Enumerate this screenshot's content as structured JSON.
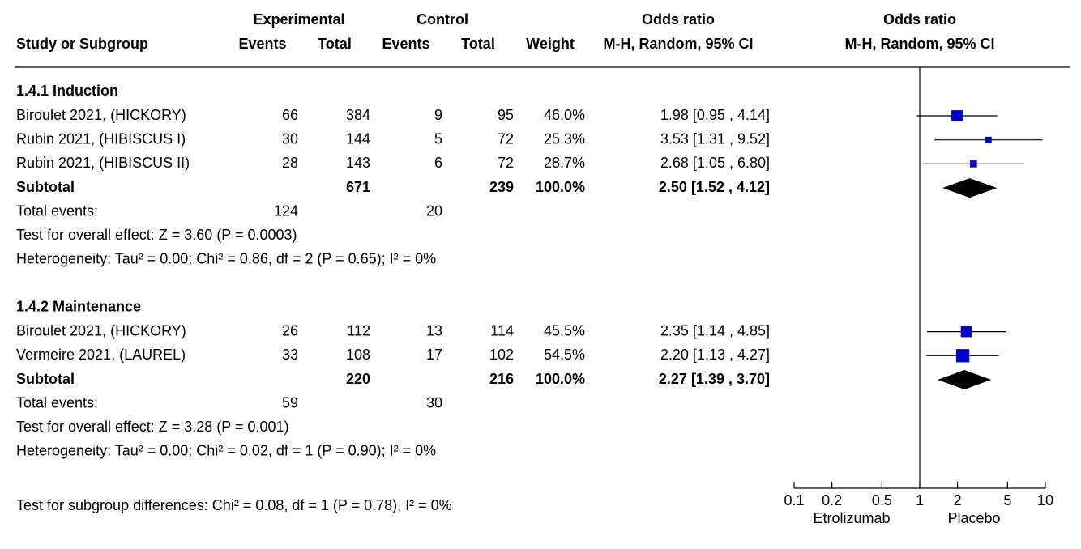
{
  "chart_data": {
    "type": "forest",
    "headers": {
      "experimental": "Experimental",
      "control": "Control",
      "odds_ratio": "Odds ratio",
      "study": "Study or Subgroup",
      "exp_events": "Events",
      "exp_total": "Total",
      "ctrl_events": "Events",
      "ctrl_total": "Total",
      "weight": "Weight",
      "method": "M-H, Random, 95% CI"
    },
    "groups": [
      {
        "title": "1.4.1 Induction",
        "studies": [
          {
            "name": "Biroulet 2021, (HICKORY)",
            "exp_events": 66,
            "exp_total": 384,
            "ctrl_events": 9,
            "ctrl_total": 95,
            "weight": 46.0,
            "weight_label": "46.0%",
            "or": 1.98,
            "lo": 0.95,
            "hi": 4.14,
            "ci_label": "1.98 [0.95 , 4.14]"
          },
          {
            "name": "Rubin 2021, (HIBISCUS I)",
            "exp_events": 30,
            "exp_total": 144,
            "ctrl_events": 5,
            "ctrl_total": 72,
            "weight": 25.3,
            "weight_label": "25.3%",
            "or": 3.53,
            "lo": 1.31,
            "hi": 9.52,
            "ci_label": "3.53 [1.31 , 9.52]"
          },
          {
            "name": "Rubin 2021, (HIBISCUS II)",
            "exp_events": 28,
            "exp_total": 143,
            "ctrl_events": 6,
            "ctrl_total": 72,
            "weight": 28.7,
            "weight_label": "28.7%",
            "or": 2.68,
            "lo": 1.05,
            "hi": 6.8,
            "ci_label": "2.68 [1.05 , 6.80]"
          }
        ],
        "subtotal": {
          "name": "Subtotal",
          "exp_total": 671,
          "ctrl_total": 239,
          "weight": 100.0,
          "weight_label": "100.0%",
          "or": 2.5,
          "lo": 1.52,
          "hi": 4.12,
          "ci_label": "2.50 [1.52 , 4.12]"
        },
        "total_events": {
          "label": "Total events:",
          "exp": 124,
          "ctrl": 20
        },
        "test": "Test for overall effect: Z = 3.60 (P = 0.0003)",
        "heterogeneity": "Heterogeneity: Tau² = 0.00; Chi² = 0.86, df = 2 (P = 0.65); I² = 0%"
      },
      {
        "title": "1.4.2 Maintenance",
        "studies": [
          {
            "name": "Biroulet 2021, (HICKORY)",
            "exp_events": 26,
            "exp_total": 112,
            "ctrl_events": 13,
            "ctrl_total": 114,
            "weight": 45.5,
            "weight_label": "45.5%",
            "or": 2.35,
            "lo": 1.14,
            "hi": 4.85,
            "ci_label": "2.35 [1.14 , 4.85]"
          },
          {
            "name": "Vermeire 2021, (LAUREL)",
            "exp_events": 33,
            "exp_total": 108,
            "ctrl_events": 17,
            "ctrl_total": 102,
            "weight": 54.5,
            "weight_label": "54.5%",
            "or": 2.2,
            "lo": 1.13,
            "hi": 4.27,
            "ci_label": "2.20 [1.13 , 4.27]"
          }
        ],
        "subtotal": {
          "name": "Subtotal",
          "exp_total": 220,
          "ctrl_total": 216,
          "weight": 100.0,
          "weight_label": "100.0%",
          "or": 2.27,
          "lo": 1.39,
          "hi": 3.7,
          "ci_label": "2.27 [1.39 , 3.70]"
        },
        "total_events": {
          "label": "Total events:",
          "exp": 59,
          "ctrl": 30
        },
        "test": "Test for overall effect: Z = 3.28 (P = 0.001)",
        "heterogeneity": "Heterogeneity: Tau² = 0.00; Chi² = 0.02, df = 1 (P = 0.90); I² = 0%"
      }
    ],
    "subgroup_differences": "Test for subgroup differences: Chi² = 0.08, df = 1 (P = 0.78), I² = 0%",
    "xlim": [
      0.1,
      10
    ],
    "xticks": [
      0.1,
      0.2,
      0.5,
      1,
      2,
      5,
      10
    ],
    "log_x": true,
    "x_label_left": "Etrolizumab",
    "x_label_right": "Placebo",
    "color": "#0000cc"
  }
}
